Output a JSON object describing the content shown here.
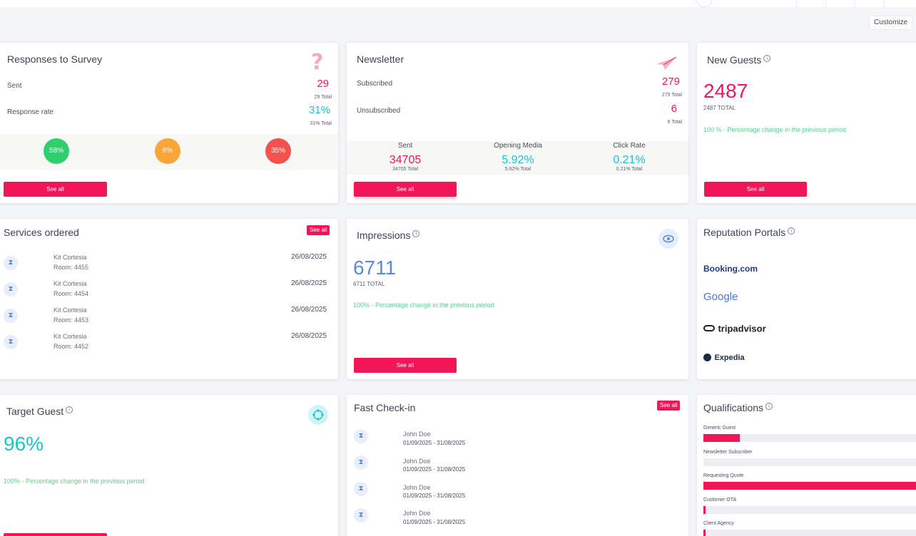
{
  "toolbar": {
    "customize_label": "Customize"
  },
  "survey": {
    "title": "Responses to Survey",
    "sent_label": "Sent",
    "sent_value": "29",
    "sent_total": "29 Total",
    "rate_label": "Response rate",
    "rate_value": "31%",
    "rate_total": "31% Total",
    "circles": [
      {
        "label": "58%",
        "color": "#2fcf6f"
      },
      {
        "label": "6%",
        "color": "#f8a53a"
      },
      {
        "label": "35%",
        "color": "#f4524f"
      }
    ],
    "see_all": "See all"
  },
  "newsletter": {
    "title": "Newsletter",
    "subscribed_label": "Subscribed",
    "subscribed_value": "279",
    "subscribed_total": "279 Total",
    "unsubscribed_label": "Unsubscribed",
    "unsubscribed_value": "6",
    "unsubscribed_total": "6 Total",
    "stats": [
      {
        "head": "Sent",
        "value": "34705",
        "sub": "34705 Total"
      },
      {
        "head": "Opening Media",
        "value": "5.92%",
        "sub": "5.92% Total"
      },
      {
        "head": "Click Rate",
        "value": "0.21%",
        "sub": "0.21% Total"
      }
    ],
    "see_all": "See all"
  },
  "new_guests": {
    "title": "New Guests",
    "info": "i",
    "value": "2487",
    "total": "2487 TOTAL",
    "note": "100 % - Percentage change in the previous period",
    "see_all": "See all"
  },
  "services": {
    "title": "Services ordered",
    "see_all": "See all",
    "rows": [
      {
        "name": "Kit Cortesia",
        "room": "Room: 4455",
        "date": "26/08/2025"
      },
      {
        "name": "Kit Cortesia",
        "room": "Room: 4454",
        "date": "26/08/2025"
      },
      {
        "name": "Kit Cortesia",
        "room": "Room: 4453",
        "date": "26/08/2025"
      },
      {
        "name": "Kit Cortesia",
        "room": "Room: 4452",
        "date": "26/08/2025"
      }
    ]
  },
  "impressions": {
    "title": "Impressions",
    "info": "i",
    "value": "6711",
    "total": "6711 TOTAL",
    "note": "100% - Percentage change in the previous period",
    "see_all": "See all"
  },
  "reputation": {
    "title": "Reputation Portals",
    "info": "i",
    "portals": [
      "Booking.com",
      "Google",
      "tripadvisor",
      "Expedia"
    ]
  },
  "target": {
    "title": "Target Guest",
    "info": "i",
    "value": "96%",
    "note": "100% - Percentage change in the previous period"
  },
  "checkin": {
    "title": "Fast Check-in",
    "see_all": "See all",
    "rows": [
      {
        "name": "John Doe",
        "dates": "01/09/2025 - 31/08/2025"
      },
      {
        "name": "John Doe",
        "dates": "01/09/2025 - 31/08/2025"
      },
      {
        "name": "John Doe",
        "dates": "01/09/2025 - 31/08/2025"
      },
      {
        "name": "John Doe",
        "dates": "01/09/2025 - 31/08/2025"
      }
    ]
  },
  "qualifications": {
    "title": "Qualifications",
    "info": "i",
    "items": [
      {
        "label": "Generic Guest",
        "fraction": 0.17
      },
      {
        "label": "Newsletter Subscriber",
        "fraction": 0.0
      },
      {
        "label": "Requesting Quote",
        "fraction": 1.0
      },
      {
        "label": "Customer OTA",
        "fraction": 0.01
      },
      {
        "label": "Client Agency",
        "fraction": 0.01
      }
    ]
  },
  "icons": {
    "hourglass": "hourglass-icon",
    "question": "question-icon",
    "plane": "paper-plane-icon",
    "eye": "eye-icon",
    "target": "target-icon",
    "info": "info-icon"
  }
}
